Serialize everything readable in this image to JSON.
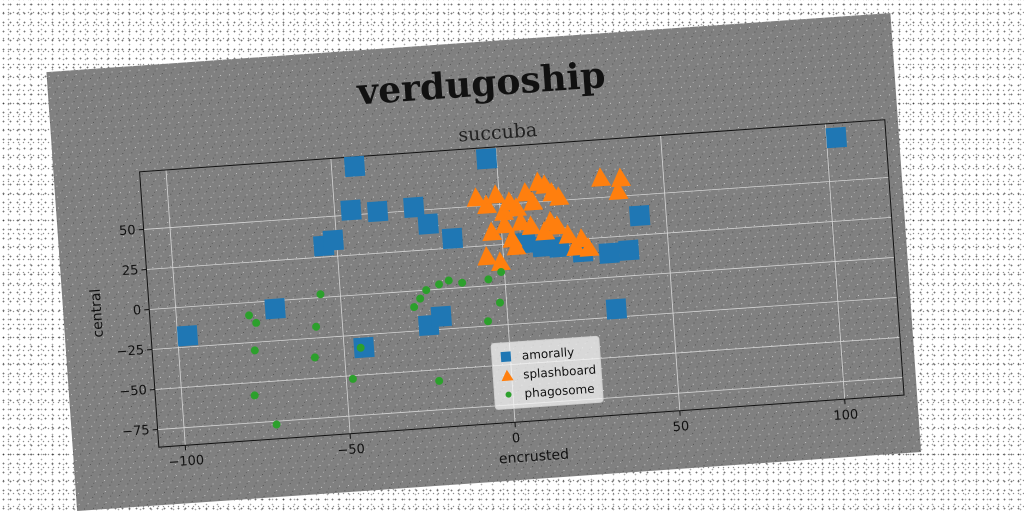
{
  "chart_data": {
    "type": "scatter",
    "title": "verdugoship",
    "subtitle": "succuba",
    "xlabel": "encrusted",
    "ylabel": "central",
    "xlim": [
      -108,
      118
    ],
    "ylim": [
      -86,
      86
    ],
    "xticks": [
      -100,
      -50,
      0,
      50,
      100
    ],
    "yticks": [
      -75,
      -50,
      -25,
      0,
      25,
      50
    ],
    "xtick_labels": [
      "−100",
      "−50",
      "0",
      "50",
      "100"
    ],
    "ytick_labels": [
      "−75",
      "−50",
      "−25",
      "0",
      "25",
      "50"
    ],
    "grid": true,
    "legend_position": "bottom-center",
    "panel_color": "#808080",
    "series": [
      {
        "name": "amorally",
        "marker": "square",
        "color": "#1f77b4",
        "points": [
          [
            103,
            77
          ],
          [
            -97,
            -18
          ],
          [
            -70,
            -5
          ],
          [
            -54,
            32
          ],
          [
            -51,
            35
          ],
          [
            -43,
            80
          ],
          [
            -45,
            53
          ],
          [
            -37,
            51
          ],
          [
            -22,
            41
          ],
          [
            -26,
            52
          ],
          [
            -15,
            31
          ],
          [
            -3,
            79
          ],
          [
            7,
            25
          ],
          [
            12,
            22
          ],
          [
            17,
            21
          ],
          [
            24,
            17
          ],
          [
            32,
            15
          ],
          [
            38,
            16
          ],
          [
            42,
            37
          ],
          [
            33,
            -20
          ],
          [
            -24,
            -22
          ],
          [
            -20,
            -17
          ],
          [
            -44,
            -33
          ]
        ]
      },
      {
        "name": "splashboard",
        "marker": "triangle",
        "color": "#ff7f0e",
        "points": [
          [
            -7,
            55
          ],
          [
            -4,
            50
          ],
          [
            -1,
            56
          ],
          [
            1,
            45
          ],
          [
            3,
            51
          ],
          [
            5,
            47
          ],
          [
            8,
            56
          ],
          [
            10,
            50
          ],
          [
            12,
            62
          ],
          [
            14,
            60
          ],
          [
            16,
            55
          ],
          [
            18,
            52
          ],
          [
            -3,
            33
          ],
          [
            3,
            28
          ],
          [
            6,
            38
          ],
          [
            9,
            35
          ],
          [
            13,
            31
          ],
          [
            15,
            37
          ],
          [
            17,
            34
          ],
          [
            20,
            28
          ],
          [
            22,
            20
          ],
          [
            24,
            25
          ],
          [
            26,
            19
          ],
          [
            31,
            62
          ],
          [
            37,
            61
          ],
          [
            36,
            53
          ],
          [
            -5,
            18
          ],
          [
            -1,
            14
          ],
          [
            4,
            23
          ],
          [
            1,
            37
          ]
        ]
      },
      {
        "name": "phagosome",
        "marker": "circle",
        "color": "#2ca02c",
        "points": [
          [
            -78,
            -8
          ],
          [
            -76,
            -13
          ],
          [
            -77,
            -30
          ],
          [
            -78,
            -58
          ],
          [
            -72,
            -77
          ],
          [
            -58,
            -18
          ],
          [
            -59,
            -37
          ],
          [
            -56,
            2
          ],
          [
            -48,
            -52
          ],
          [
            -45,
            -33
          ],
          [
            -26,
            -5
          ],
          [
            -24,
            0
          ],
          [
            -20,
            3
          ],
          [
            -17,
            5
          ],
          [
            -13,
            3
          ],
          [
            -28,
            -10
          ],
          [
            -22,
            -57
          ],
          [
            -5,
            4
          ],
          [
            -1,
            8
          ],
          [
            -6,
            -22
          ],
          [
            -2,
            -11
          ]
        ]
      }
    ]
  }
}
